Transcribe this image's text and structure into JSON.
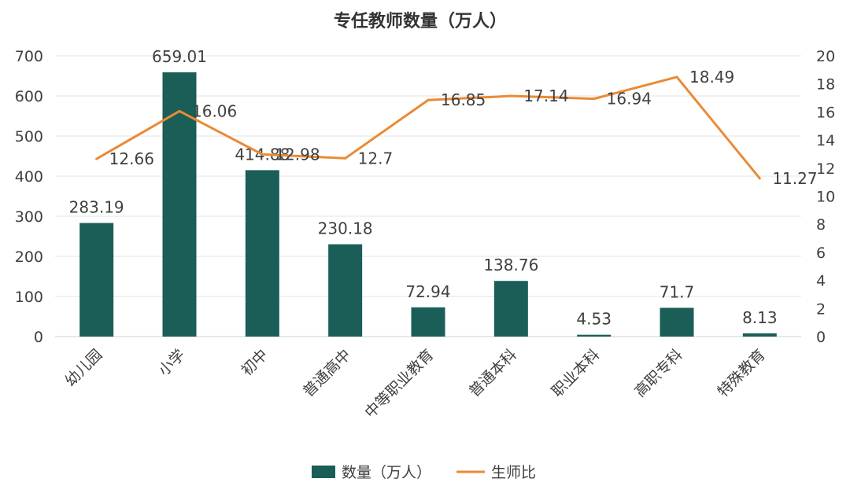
{
  "chart_data": {
    "type": "bar+line",
    "title": "专任教师数量（万人）",
    "categories": [
      "幼儿园",
      "小学",
      "初中",
      "普通高中",
      "中等职业教育",
      "普通本科",
      "职业本科",
      "高职专科",
      "特殊教育"
    ],
    "series": [
      {
        "name": "数量（万人）",
        "type": "bar",
        "axis": "left",
        "values": [
          283.19,
          659.01,
          414.88,
          230.18,
          72.94,
          138.76,
          4.53,
          71.7,
          8.13
        ],
        "labels": [
          "283.19",
          "659.01",
          "414.88",
          "230.18",
          "72.94",
          "138.76",
          "4.53",
          "71.7",
          "8.13"
        ],
        "color": "#1a5e57"
      },
      {
        "name": "生师比",
        "type": "line",
        "axis": "right",
        "values": [
          12.66,
          16.06,
          12.98,
          12.7,
          16.85,
          17.14,
          16.94,
          18.49,
          11.27
        ],
        "labels": [
          "12.66",
          "16.06",
          "12.98",
          "12.7",
          "16.85",
          "17.14",
          "16.94",
          "18.49",
          "11.27"
        ],
        "color": "#ea8a35"
      }
    ],
    "y_left": {
      "range": [
        0,
        700
      ],
      "ticks": [
        "0",
        "100",
        "200",
        "300",
        "400",
        "500",
        "600",
        "700"
      ]
    },
    "y_right": {
      "range": [
        0,
        20
      ],
      "ticks": [
        "0",
        "2",
        "4",
        "6",
        "8",
        "10",
        "12",
        "14",
        "16",
        "18",
        "20"
      ]
    },
    "grid": true,
    "legend": "bottom"
  }
}
